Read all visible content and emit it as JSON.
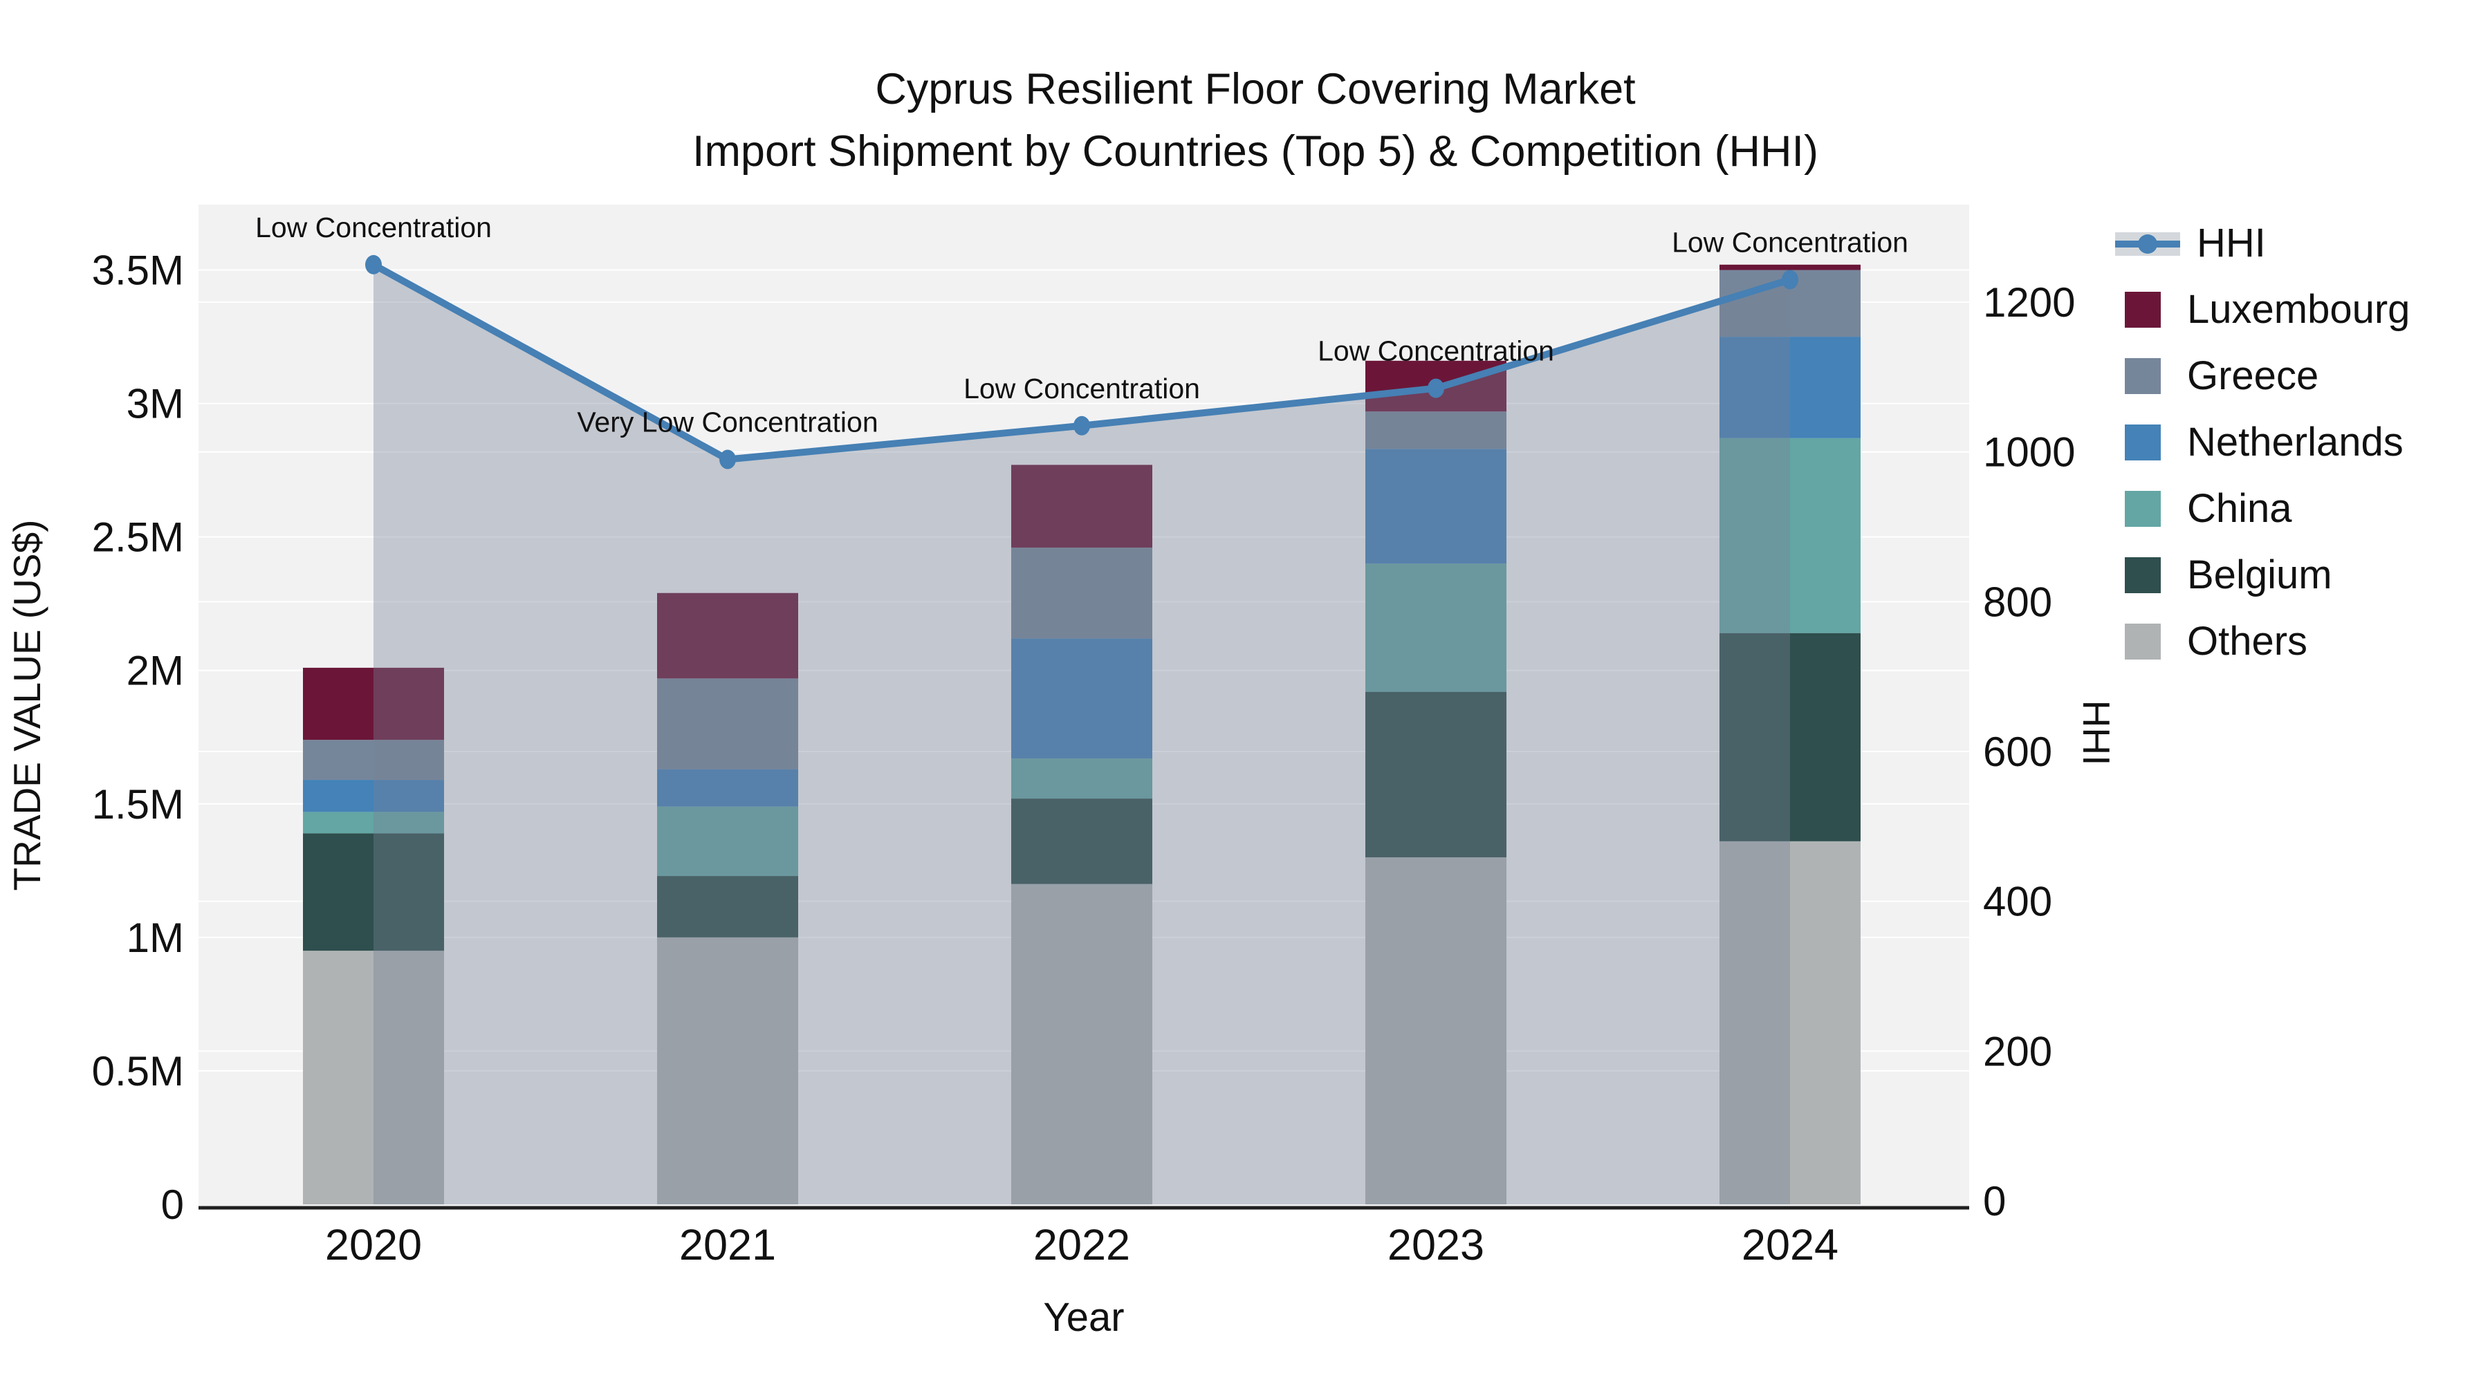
{
  "title": {
    "line1": "Cyprus Resilient Floor Covering Market",
    "line2": "Import Shipment by Countries (Top 5) & Competition (HHI)"
  },
  "axes": {
    "x_title": "Year",
    "y_left_title": "TRADE VALUE (US$)",
    "y_right_title": "HHI",
    "left_ticks": [
      {
        "value": 0,
        "label": "0"
      },
      {
        "value": 0.5,
        "label": "0.5M"
      },
      {
        "value": 1,
        "label": "1M"
      },
      {
        "value": 1.5,
        "label": "1.5M"
      },
      {
        "value": 2,
        "label": "2M"
      },
      {
        "value": 2.5,
        "label": "2.5M"
      },
      {
        "value": 3,
        "label": "3M"
      },
      {
        "value": 3.5,
        "label": "3.5M"
      }
    ],
    "right_ticks": [
      {
        "value": 0,
        "label": "0"
      },
      {
        "value": 200,
        "label": "200"
      },
      {
        "value": 400,
        "label": "400"
      },
      {
        "value": 600,
        "label": "600"
      },
      {
        "value": 800,
        "label": "800"
      },
      {
        "value": 1000,
        "label": "1000"
      },
      {
        "value": 1200,
        "label": "1200"
      }
    ]
  },
  "chart_data": {
    "type": "bar+line",
    "categories": [
      "2020",
      "2021",
      "2022",
      "2023",
      "2024"
    ],
    "stack_order_note": "series listed bottom-to-top of stack; values in millions US$",
    "series": [
      {
        "name": "Others",
        "color": "#afb3b4",
        "values": [
          0.95,
          1.0,
          1.2,
          1.3,
          1.36
        ]
      },
      {
        "name": "Belgium",
        "color": "#2e4f4d",
        "values": [
          0.44,
          0.23,
          0.32,
          0.62,
          0.78
        ]
      },
      {
        "name": "China",
        "color": "#63a6a4",
        "values": [
          0.08,
          0.26,
          0.15,
          0.48,
          0.73
        ]
      },
      {
        "name": "Netherlands",
        "color": "#4482b7",
        "values": [
          0.12,
          0.14,
          0.45,
          0.43,
          0.38
        ]
      },
      {
        "name": "Greece",
        "color": "#76869a",
        "values": [
          0.15,
          0.34,
          0.34,
          0.14,
          0.25
        ]
      },
      {
        "name": "Luxembourg",
        "color": "#6b1638",
        "values": [
          0.27,
          0.32,
          0.31,
          0.19,
          0.02
        ]
      }
    ],
    "line_series": {
      "name": "HHI",
      "color": "#4680b4",
      "fill_color": "rgba(117,128,150,0.38)",
      "values": [
        1250,
        990,
        1035,
        1085,
        1230
      ]
    },
    "annotations": [
      "Low Concentration",
      "Very Low Concentration",
      "Low Concentration",
      "Low Concentration",
      "Low Concentration"
    ],
    "ylim_left": [
      0,
      3.75
    ],
    "ylim_right": [
      0,
      1340
    ],
    "grid": true,
    "legend_position": "right",
    "legend_order": [
      "HHI",
      "Luxembourg",
      "Greece",
      "Netherlands",
      "China",
      "Belgium",
      "Others"
    ],
    "plot_bg": "#f2f2f3",
    "grid_color": "#ffffff",
    "axis_line_color": "#1f1f1f"
  }
}
